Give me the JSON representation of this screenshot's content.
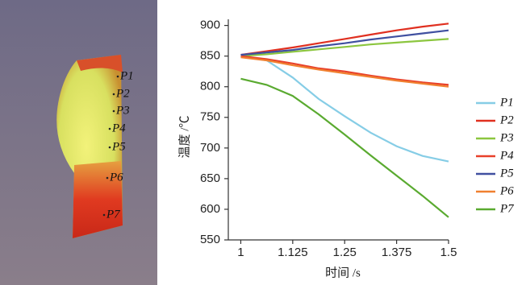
{
  "point_labels": [
    "P1",
    "P2",
    "P3",
    "P4",
    "P5",
    "P6",
    "P7"
  ],
  "chart_data": {
    "type": "line",
    "x_label": "时间 /s",
    "y_label": "温度 /℃",
    "x": [
      1,
      1.0625,
      1.125,
      1.1875,
      1.25,
      1.3125,
      1.375,
      1.4375,
      1.5
    ],
    "xlim": [
      0.97,
      1.5
    ],
    "xticks": [
      1,
      1.125,
      1.25,
      1.375,
      1.5
    ],
    "ylim": [
      550,
      910
    ],
    "yticks": [
      550,
      600,
      650,
      700,
      750,
      800,
      850,
      900
    ],
    "legend": "right",
    "series": [
      {
        "name": "P1",
        "color": "#86cde6",
        "values": [
          850,
          843,
          815,
          780,
          752,
          725,
          703,
          687,
          678
        ]
      },
      {
        "name": "P2",
        "color": "#e03020",
        "values": [
          852,
          858,
          864,
          871,
          878,
          885,
          892,
          898,
          903
        ]
      },
      {
        "name": "P3",
        "color": "#8cc63f",
        "values": [
          850,
          853,
          857,
          861,
          865,
          869,
          872,
          875,
          878
        ]
      },
      {
        "name": "P4",
        "color": "#e8402a",
        "values": [
          850,
          845,
          838,
          830,
          825,
          818,
          812,
          807,
          803
        ]
      },
      {
        "name": "P5",
        "color": "#4050a0",
        "values": [
          852,
          856,
          860,
          866,
          871,
          877,
          882,
          887,
          892
        ]
      },
      {
        "name": "P6",
        "color": "#f08030",
        "values": [
          848,
          843,
          835,
          828,
          822,
          816,
          810,
          805,
          800
        ]
      },
      {
        "name": "P7",
        "color": "#5aaa30",
        "values": [
          813,
          803,
          785,
          755,
          722,
          688,
          655,
          622,
          587
        ]
      }
    ]
  }
}
